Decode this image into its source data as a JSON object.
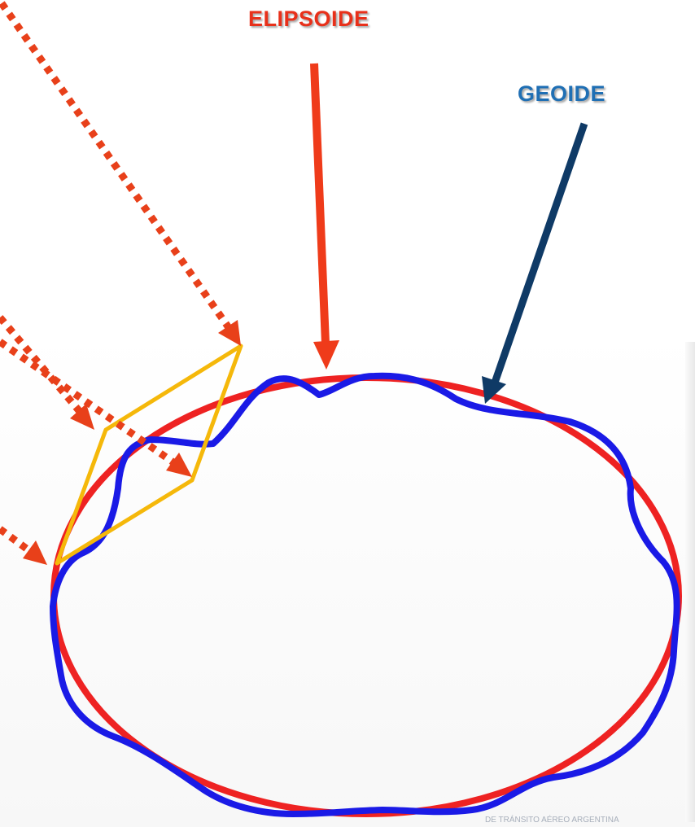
{
  "labels": {
    "ellipsoid": "ELIPSOIDE",
    "geoid": "GEOIDE",
    "watermark": "DE TRÁNSITO AÉREO ARGENTINA"
  },
  "colors": {
    "ellipsoid": "#ee2222",
    "geoid": "#1a1ae6",
    "ellipsoid_label": "#e8301a",
    "geoid_label": "#1f6fb4",
    "geoid_arrow": "#0f3a66",
    "ellipsoid_arrow": "#ef3b1a",
    "plane": "#f5b80a",
    "ray": "#e8401a"
  }
}
